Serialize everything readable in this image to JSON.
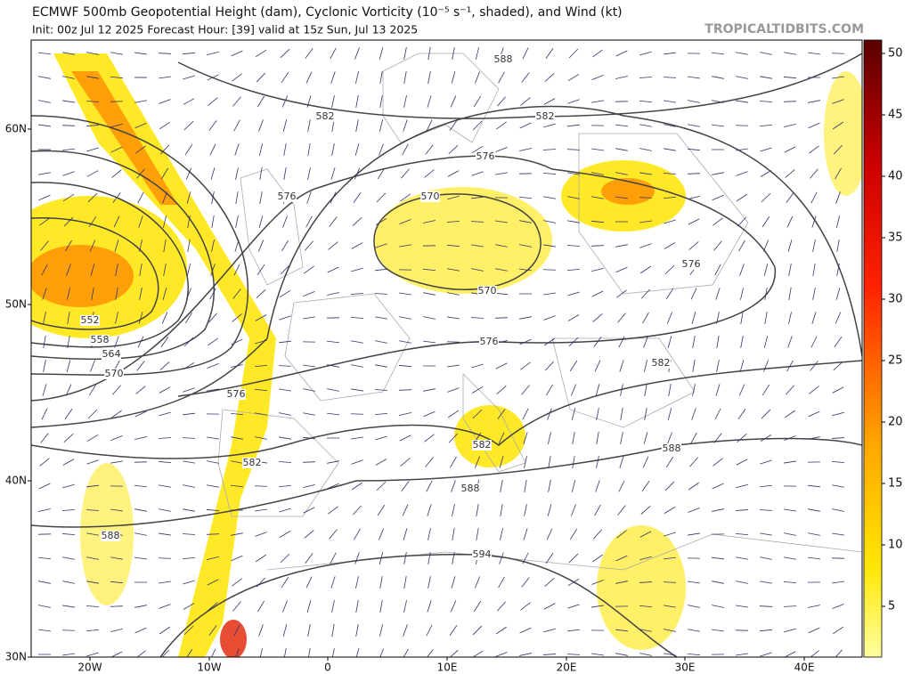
{
  "header": {
    "title": "ECMWF 500mb Geopotential Height (dam), Cyclonic Vorticity (10⁻⁵ s⁻¹, shaded), and Wind (kt)",
    "subtitle": "Init: 00z Jul 12 2025   Forecast Hour: [39]   valid at 15z Sun, Jul 13 2025",
    "source": "TROPICALTIDBITS.COM"
  },
  "map": {
    "lat_labels": [
      "60N",
      "50N",
      "40N",
      "30N"
    ],
    "lon_labels": [
      "20W",
      "10W",
      "0",
      "10E",
      "20E",
      "30E",
      "40E"
    ],
    "contour_labels": [
      "588",
      "582",
      "582",
      "576",
      "576",
      "570",
      "576",
      "570",
      "552",
      "558",
      "564",
      "570",
      "576",
      "576",
      "582",
      "582",
      "582",
      "588",
      "588",
      "588",
      "594"
    ]
  },
  "colorbar": {
    "ticks": [
      50,
      45,
      40,
      35,
      30,
      25,
      20,
      15,
      10,
      5
    ]
  }
}
